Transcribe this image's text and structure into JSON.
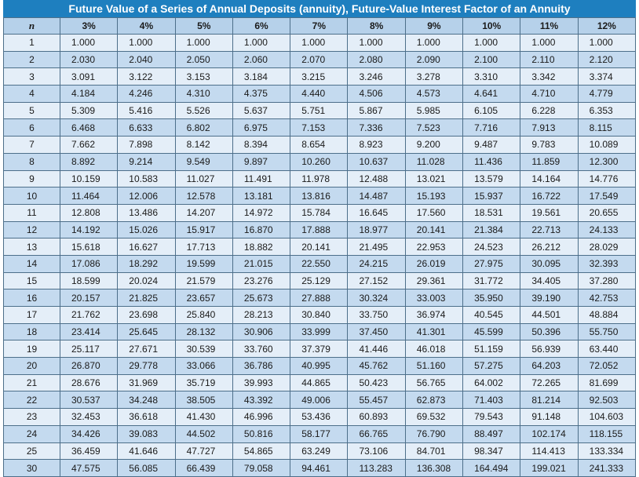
{
  "title": "Future Value of a Series of Annual Deposits (annuity), Future-Value Interest Factor of an Annuity",
  "header": {
    "n_label": "n",
    "rates": [
      "3%",
      "4%",
      "5%",
      "6%",
      "7%",
      "8%",
      "9%",
      "10%",
      "11%",
      "12%"
    ]
  },
  "rows": [
    {
      "n": "1",
      "values": [
        "1.000",
        "1.000",
        "1.000",
        "1.000",
        "1.000",
        "1.000",
        "1.000",
        "1.000",
        "1.000",
        "1.000"
      ]
    },
    {
      "n": "2",
      "values": [
        "2.030",
        "2.040",
        "2.050",
        "2.060",
        "2.070",
        "2.080",
        "2.090",
        "2.100",
        "2.110",
        "2.120"
      ]
    },
    {
      "n": "3",
      "values": [
        "3.091",
        "3.122",
        "3.153",
        "3.184",
        "3.215",
        "3.246",
        "3.278",
        "3.310",
        "3.342",
        "3.374"
      ]
    },
    {
      "n": "4",
      "values": [
        "4.184",
        "4.246",
        "4.310",
        "4.375",
        "4.440",
        "4.506",
        "4.573",
        "4.641",
        "4.710",
        "4.779"
      ]
    },
    {
      "n": "5",
      "values": [
        "5.309",
        "5.416",
        "5.526",
        "5.637",
        "5.751",
        "5.867",
        "5.985",
        "6.105",
        "6.228",
        "6.353"
      ]
    },
    {
      "n": "6",
      "values": [
        "6.468",
        "6.633",
        "6.802",
        "6.975",
        "7.153",
        "7.336",
        "7.523",
        "7.716",
        "7.913",
        "8.115"
      ]
    },
    {
      "n": "7",
      "values": [
        "7.662",
        "7.898",
        "8.142",
        "8.394",
        "8.654",
        "8.923",
        "9.200",
        "9.487",
        "9.783",
        "10.089"
      ]
    },
    {
      "n": "8",
      "values": [
        "8.892",
        "9.214",
        "9.549",
        "9.897",
        "10.260",
        "10.637",
        "11.028",
        "11.436",
        "11.859",
        "12.300"
      ]
    },
    {
      "n": "9",
      "values": [
        "10.159",
        "10.583",
        "11.027",
        "11.491",
        "11.978",
        "12.488",
        "13.021",
        "13.579",
        "14.164",
        "14.776"
      ]
    },
    {
      "n": "10",
      "values": [
        "11.464",
        "12.006",
        "12.578",
        "13.181",
        "13.816",
        "14.487",
        "15.193",
        "15.937",
        "16.722",
        "17.549"
      ]
    },
    {
      "n": "11",
      "values": [
        "12.808",
        "13.486",
        "14.207",
        "14.972",
        "15.784",
        "16.645",
        "17.560",
        "18.531",
        "19.561",
        "20.655"
      ]
    },
    {
      "n": "12",
      "values": [
        "14.192",
        "15.026",
        "15.917",
        "16.870",
        "17.888",
        "18.977",
        "20.141",
        "21.384",
        "22.713",
        "24.133"
      ]
    },
    {
      "n": "13",
      "values": [
        "15.618",
        "16.627",
        "17.713",
        "18.882",
        "20.141",
        "21.495",
        "22.953",
        "24.523",
        "26.212",
        "28.029"
      ]
    },
    {
      "n": "14",
      "values": [
        "17.086",
        "18.292",
        "19.599",
        "21.015",
        "22.550",
        "24.215",
        "26.019",
        "27.975",
        "30.095",
        "32.393"
      ]
    },
    {
      "n": "15",
      "values": [
        "18.599",
        "20.024",
        "21.579",
        "23.276",
        "25.129",
        "27.152",
        "29.361",
        "31.772",
        "34.405",
        "37.280"
      ]
    },
    {
      "n": "16",
      "values": [
        "20.157",
        "21.825",
        "23.657",
        "25.673",
        "27.888",
        "30.324",
        "33.003",
        "35.950",
        "39.190",
        "42.753"
      ]
    },
    {
      "n": "17",
      "values": [
        "21.762",
        "23.698",
        "25.840",
        "28.213",
        "30.840",
        "33.750",
        "36.974",
        "40.545",
        "44.501",
        "48.884"
      ]
    },
    {
      "n": "18",
      "values": [
        "23.414",
        "25.645",
        "28.132",
        "30.906",
        "33.999",
        "37.450",
        "41.301",
        "45.599",
        "50.396",
        "55.750"
      ]
    },
    {
      "n": "19",
      "values": [
        "25.117",
        "27.671",
        "30.539",
        "33.760",
        "37.379",
        "41.446",
        "46.018",
        "51.159",
        "56.939",
        "63.440"
      ]
    },
    {
      "n": "20",
      "values": [
        "26.870",
        "29.778",
        "33.066",
        "36.786",
        "40.995",
        "45.762",
        "51.160",
        "57.275",
        "64.203",
        "72.052"
      ]
    },
    {
      "n": "21",
      "values": [
        "28.676",
        "31.969",
        "35.719",
        "39.993",
        "44.865",
        "50.423",
        "56.765",
        "64.002",
        "72.265",
        "81.699"
      ]
    },
    {
      "n": "22",
      "values": [
        "30.537",
        "34.248",
        "38.505",
        "43.392",
        "49.006",
        "55.457",
        "62.873",
        "71.403",
        "81.214",
        "92.503"
      ]
    },
    {
      "n": "23",
      "values": [
        "32.453",
        "36.618",
        "41.430",
        "46.996",
        "53.436",
        "60.893",
        "69.532",
        "79.543",
        "91.148",
        "104.603"
      ]
    },
    {
      "n": "24",
      "values": [
        "34.426",
        "39.083",
        "44.502",
        "50.816",
        "58.177",
        "66.765",
        "76.790",
        "88.497",
        "102.174",
        "118.155"
      ]
    },
    {
      "n": "25",
      "values": [
        "36.459",
        "41.646",
        "47.727",
        "54.865",
        "63.249",
        "73.106",
        "84.701",
        "98.347",
        "114.413",
        "133.334"
      ]
    },
    {
      "n": "30",
      "values": [
        "47.575",
        "56.085",
        "66.439",
        "79.058",
        "94.461",
        "113.283",
        "136.308",
        "164.494",
        "199.021",
        "241.333"
      ]
    }
  ],
  "colors": {
    "title_bg": "#1e7fbf",
    "header_bg": "#b6d1ea",
    "row_light": "#e4eef8",
    "row_dark": "#c4daef"
  }
}
